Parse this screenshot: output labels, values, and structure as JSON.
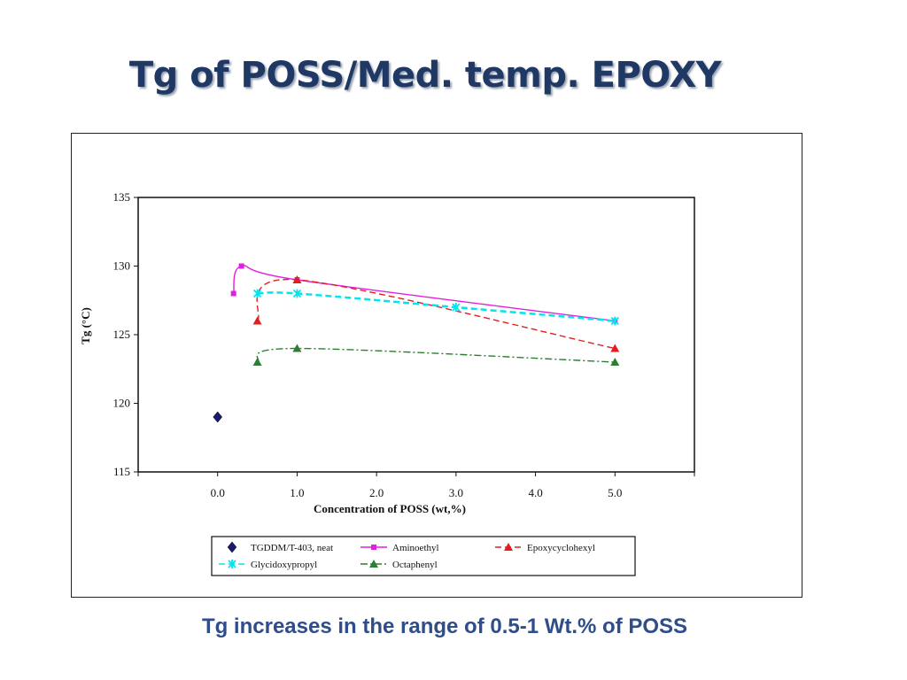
{
  "slide": {
    "title": "Tg of POSS/Med. temp. EPOXY",
    "caption": "Tg increases in the range of 0.5-1 Wt.% of POSS"
  },
  "chart_data": {
    "type": "scatter",
    "xlabel": "Concentration of POSS (wt,%)",
    "ylabel": "Tg (°C)",
    "xlim": [
      -1,
      6
    ],
    "ylim": [
      115,
      135
    ],
    "x_ticks": [
      0,
      1,
      2,
      3,
      4,
      5
    ],
    "x_tick_labels": [
      "0.0",
      "1.0",
      "2.0",
      "3.0",
      "4.0",
      "5.0"
    ],
    "y_ticks": [
      115,
      120,
      125,
      130,
      135
    ],
    "y_tick_labels": [
      "115",
      "120",
      "125",
      "130",
      "135"
    ],
    "grid": false,
    "legend_position": "bottom",
    "series": [
      {
        "name": "TGDDM/T-403, neat",
        "color": "#1a1a6e",
        "marker": "diamond",
        "line": "none",
        "x": [
          0.0
        ],
        "y": [
          119
        ]
      },
      {
        "name": "Aminoethyl",
        "color": "#e020e0",
        "marker": "square",
        "line": "solid",
        "x": [
          0.2,
          0.3,
          1.0,
          5.0
        ],
        "y": [
          128,
          130,
          129,
          126
        ]
      },
      {
        "name": "Epoxycyclohexyl",
        "color": "#e02020",
        "marker": "triangle",
        "line": "dashed",
        "x": [
          0.5,
          1.0,
          5.0
        ],
        "y": [
          126,
          129,
          124
        ]
      },
      {
        "name": "Glycidoxypropyl",
        "color": "#00e5ee",
        "marker": "asterisk",
        "line": "dashed",
        "x": [
          0.5,
          1.0,
          3.0,
          5.0
        ],
        "y": [
          128,
          128,
          127,
          126
        ]
      },
      {
        "name": "Octaphenyl",
        "color": "#2e7d32",
        "marker": "triangle",
        "line": "dashdot",
        "x": [
          0.5,
          1.0,
          5.0
        ],
        "y": [
          123,
          124,
          123
        ]
      }
    ]
  }
}
